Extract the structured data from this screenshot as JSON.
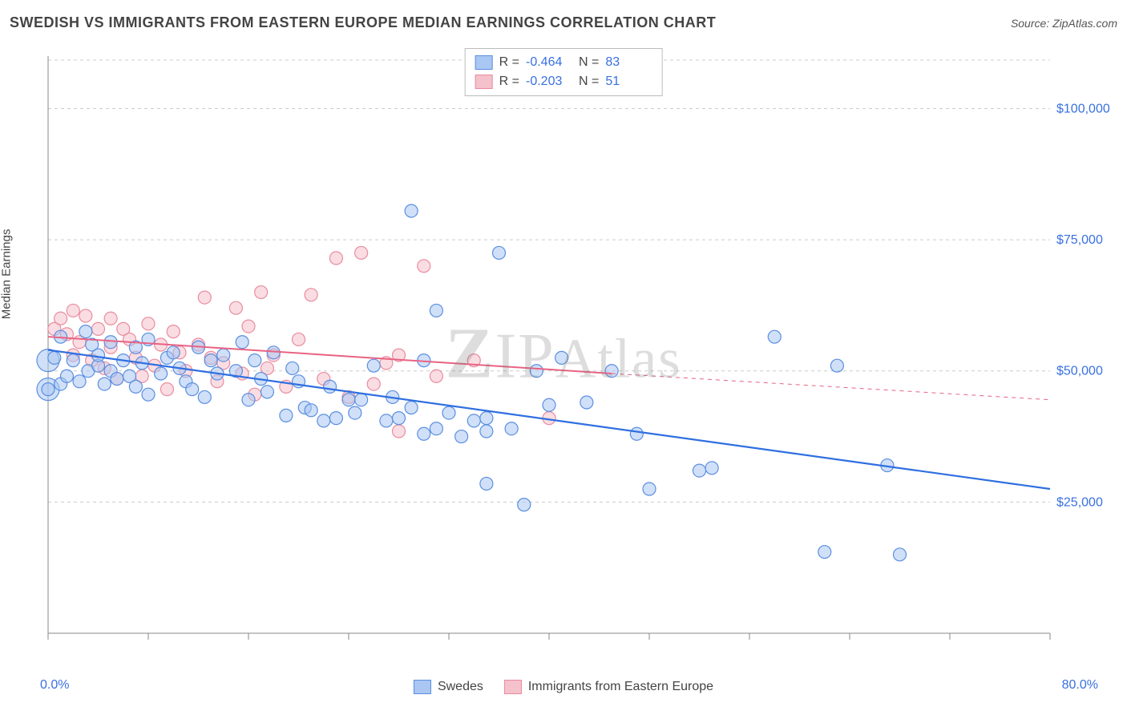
{
  "header": {
    "title": "SWEDISH VS IMMIGRANTS FROM EASTERN EUROPE MEDIAN EARNINGS CORRELATION CHART",
    "source": "Source: ZipAtlas.com"
  },
  "chart": {
    "type": "scatter",
    "ylabel": "Median Earnings",
    "xlim": [
      0,
      80
    ],
    "ylim": [
      0,
      110000
    ],
    "x_tick_labels": [
      "0.0%",
      "80.0%"
    ],
    "y_ticks": [
      25000,
      50000,
      75000,
      100000
    ],
    "y_tick_labels": [
      "$25,000",
      "$50,000",
      "$75,000",
      "$100,000"
    ],
    "y_tick_label_color": "#3970e0",
    "x_tick_label_color": "#3970e0",
    "grid_color": "#cccccc",
    "grid_dash": "4,4",
    "axis_color": "#888888",
    "background_color": "#ffffff",
    "label_fontsize": 15,
    "tick_fontsize": 16,
    "marker_radius": 8,
    "marker_radius_large": 14,
    "marker_opacity": 0.55,
    "marker_stroke_width": 1.2,
    "x_minor_ticks": [
      0,
      8,
      16,
      24,
      32,
      40,
      48,
      56,
      64,
      72,
      80
    ],
    "series": [
      {
        "id": "swedes",
        "label": "Swedes",
        "R": "-0.464",
        "N": "83",
        "fill": "#a9c7f2",
        "stroke": "#5b8fe0",
        "line_color": "#2f6fe0",
        "line_width": 2.2,
        "trend": {
          "x1": 0,
          "y1": 54000,
          "x2": 80,
          "y2": 27500
        },
        "points": [
          [
            0,
            46500
          ],
          [
            0.5,
            52500
          ],
          [
            1,
            47500
          ],
          [
            1,
            56500
          ],
          [
            1.5,
            49000
          ],
          [
            2,
            52000
          ],
          [
            2.5,
            48000
          ],
          [
            3,
            57500
          ],
          [
            3.2,
            50000
          ],
          [
            3.5,
            55000
          ],
          [
            4,
            51000
          ],
          [
            4,
            53000
          ],
          [
            4.5,
            47500
          ],
          [
            5,
            55500
          ],
          [
            5,
            50000
          ],
          [
            5.5,
            48500
          ],
          [
            6,
            52000
          ],
          [
            6.5,
            49000
          ],
          [
            7,
            54500
          ],
          [
            7,
            47000
          ],
          [
            7.5,
            51500
          ],
          [
            8,
            56000
          ],
          [
            8,
            45500
          ],
          [
            9,
            49500
          ],
          [
            9.5,
            52500
          ],
          [
            10,
            53500
          ],
          [
            10.5,
            50500
          ],
          [
            11,
            48000
          ],
          [
            11.5,
            46500
          ],
          [
            12,
            54500
          ],
          [
            12.5,
            45000
          ],
          [
            13,
            52000
          ],
          [
            13.5,
            49500
          ],
          [
            14,
            53000
          ],
          [
            15,
            50000
          ],
          [
            15.5,
            55500
          ],
          [
            16,
            44500
          ],
          [
            16.5,
            52000
          ],
          [
            17,
            48500
          ],
          [
            17.5,
            46000
          ],
          [
            18,
            53500
          ],
          [
            19,
            41500
          ],
          [
            19.5,
            50500
          ],
          [
            20,
            48000
          ],
          [
            20.5,
            43000
          ],
          [
            21,
            42500
          ],
          [
            22,
            40500
          ],
          [
            22.5,
            47000
          ],
          [
            23,
            41000
          ],
          [
            24,
            44500
          ],
          [
            24.5,
            42000
          ],
          [
            25,
            44500
          ],
          [
            26,
            51000
          ],
          [
            27,
            40500
          ],
          [
            27.5,
            45000
          ],
          [
            28,
            41000
          ],
          [
            29,
            80500
          ],
          [
            29,
            43000
          ],
          [
            30,
            52000
          ],
          [
            30,
            38000
          ],
          [
            31,
            61500
          ],
          [
            31,
            39000
          ],
          [
            32,
            42000
          ],
          [
            33,
            37500
          ],
          [
            34,
            40500
          ],
          [
            35,
            28500
          ],
          [
            35,
            41000
          ],
          [
            35,
            38500
          ],
          [
            36,
            72500
          ],
          [
            37,
            39000
          ],
          [
            38,
            24500
          ],
          [
            39,
            50000
          ],
          [
            40,
            43500
          ],
          [
            41,
            52500
          ],
          [
            43,
            44000
          ],
          [
            45,
            50000
          ],
          [
            47,
            38000
          ],
          [
            48,
            27500
          ],
          [
            52,
            31000
          ],
          [
            53,
            31500
          ],
          [
            58,
            56500
          ],
          [
            62,
            15500
          ],
          [
            63,
            51000
          ],
          [
            67,
            32000
          ],
          [
            68,
            15000
          ]
        ],
        "points_large": [
          [
            0,
            46500
          ],
          [
            0,
            52000
          ]
        ]
      },
      {
        "id": "immigrants",
        "label": "Immigrants from Eastern Europe",
        "R": "-0.203",
        "N": "51",
        "fill": "#f5c1cb",
        "stroke": "#e98ca0",
        "line_color": "#e86383",
        "line_width": 2,
        "trend": {
          "x1": 0,
          "y1": 56500,
          "x2": 45,
          "y2": 49500
        },
        "trend_dash": {
          "x1": 45,
          "y1": 49500,
          "x2": 80,
          "y2": 44500
        },
        "points": [
          [
            0.5,
            58000
          ],
          [
            1,
            60000
          ],
          [
            1.5,
            57000
          ],
          [
            2,
            53000
          ],
          [
            2,
            61500
          ],
          [
            2.5,
            55500
          ],
          [
            3,
            60500
          ],
          [
            3.5,
            52000
          ],
          [
            4,
            58000
          ],
          [
            4.5,
            50500
          ],
          [
            5,
            54500
          ],
          [
            5,
            60000
          ],
          [
            5.5,
            48500
          ],
          [
            6,
            58000
          ],
          [
            6.5,
            56000
          ],
          [
            7,
            52500
          ],
          [
            7.5,
            49000
          ],
          [
            8,
            59000
          ],
          [
            8.5,
            51000
          ],
          [
            9,
            55000
          ],
          [
            9.5,
            46500
          ],
          [
            10,
            57500
          ],
          [
            10.5,
            53500
          ],
          [
            11,
            50000
          ],
          [
            12,
            55000
          ],
          [
            12.5,
            64000
          ],
          [
            13,
            52500
          ],
          [
            13.5,
            48000
          ],
          [
            14,
            51500
          ],
          [
            15,
            62000
          ],
          [
            15.5,
            49500
          ],
          [
            16,
            58500
          ],
          [
            16.5,
            45500
          ],
          [
            17,
            65000
          ],
          [
            17.5,
            50500
          ],
          [
            18,
            53000
          ],
          [
            19,
            47000
          ],
          [
            20,
            56000
          ],
          [
            21,
            64500
          ],
          [
            22,
            48500
          ],
          [
            23,
            71500
          ],
          [
            24,
            45000
          ],
          [
            25,
            72500
          ],
          [
            26,
            47500
          ],
          [
            27,
            51500
          ],
          [
            28,
            53000
          ],
          [
            30,
            70000
          ],
          [
            28,
            38500
          ],
          [
            31,
            49000
          ],
          [
            34,
            52000
          ],
          [
            40,
            41000
          ]
        ]
      }
    ],
    "watermark": "ZIPAtlas"
  },
  "legend_top": {
    "R_label": "R =",
    "N_label": "N ="
  }
}
